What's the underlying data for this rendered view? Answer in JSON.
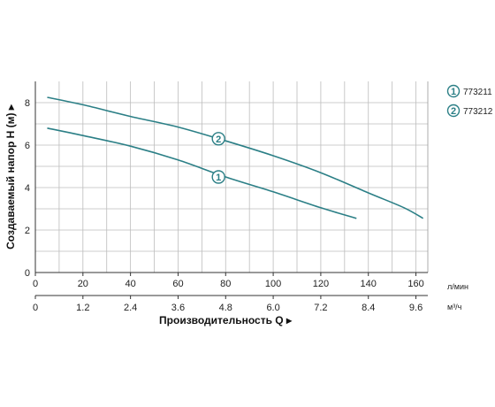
{
  "chart_data": {
    "type": "line",
    "ylabel": "Создаваемый напор H (м) ▸",
    "xlabel": "Производительность Q ▸",
    "x_unit": "л/мин",
    "x2_unit": "м³/ч",
    "xlim": [
      0,
      165
    ],
    "ylim": [
      0,
      9
    ],
    "x_ticks": [
      0,
      20,
      40,
      60,
      80,
      100,
      120,
      140,
      160
    ],
    "x2_ticks": [
      "0",
      "1.2",
      "2.4",
      "3.6",
      "4.8",
      "6.0",
      "7.2",
      "8.4",
      "9.6"
    ],
    "y_ticks": [
      0,
      2,
      4,
      6,
      8
    ],
    "grid": true,
    "line_color": "#2b7f86",
    "series": [
      {
        "name": "773211",
        "marker": "1",
        "marker_at": [
          77,
          4.5
        ],
        "x": [
          5,
          20,
          40,
          60,
          80,
          100,
          120,
          135
        ],
        "y": [
          6.8,
          6.45,
          5.95,
          5.3,
          4.5,
          3.8,
          3.05,
          2.55
        ]
      },
      {
        "name": "773212",
        "marker": "2",
        "marker_at": [
          77,
          6.3
        ],
        "x": [
          5,
          20,
          40,
          60,
          80,
          100,
          120,
          140,
          155,
          163
        ],
        "y": [
          8.25,
          7.9,
          7.35,
          6.85,
          6.2,
          5.5,
          4.7,
          3.75,
          3.05,
          2.55
        ]
      }
    ],
    "legend": {
      "placement": "top-right",
      "items": [
        {
          "marker": "1",
          "label": "773211"
        },
        {
          "marker": "2",
          "label": "773212"
        }
      ]
    }
  }
}
